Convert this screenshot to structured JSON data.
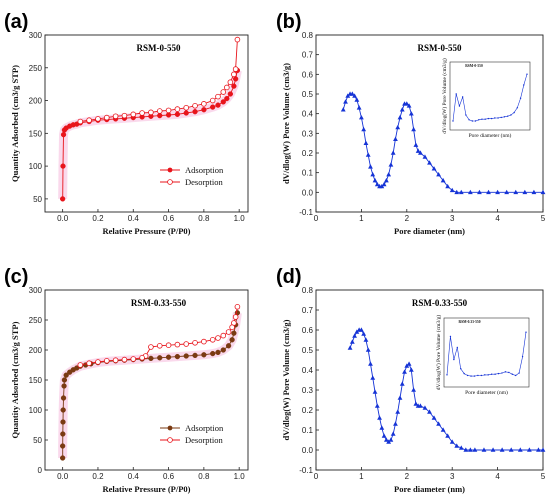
{
  "chart_data": [
    {
      "panel": "(a)",
      "type": "line",
      "title": "RSM-0-550",
      "xlabel": "Relative Pressure (P/P0)",
      "ylabel": "Quantity Adsorbed (cm3/g STP)",
      "xlim": [
        -0.1,
        1.05
      ],
      "ylim": [
        30,
        300
      ],
      "xticks": [
        "0.0",
        "0.2",
        "0.4",
        "0.6",
        "0.8",
        "1.0"
      ],
      "yticks": [
        "50",
        "100",
        "150",
        "200",
        "250",
        "300"
      ],
      "legend_position": "bottom-right",
      "series": [
        {
          "name": "Adsorption",
          "color": "#e8141b",
          "marker": "filled-circle",
          "x": [
            0.0,
            0.002,
            0.005,
            0.01,
            0.02,
            0.04,
            0.06,
            0.08,
            0.1,
            0.15,
            0.2,
            0.25,
            0.3,
            0.35,
            0.4,
            0.45,
            0.5,
            0.55,
            0.6,
            0.65,
            0.7,
            0.75,
            0.8,
            0.85,
            0.88,
            0.91,
            0.93,
            0.95,
            0.97,
            0.98,
            0.99
          ],
          "y": [
            50,
            100,
            148,
            155,
            158,
            161,
            163,
            164,
            166,
            168,
            170,
            171,
            172,
            173,
            174,
            175,
            176,
            177,
            178,
            179,
            181,
            183,
            186,
            190,
            193,
            198,
            203,
            210,
            222,
            233,
            246
          ]
        },
        {
          "name": "Desorption",
          "color": "#e8141b",
          "marker": "open-circle",
          "x": [
            0.99,
            0.98,
            0.97,
            0.95,
            0.93,
            0.91,
            0.88,
            0.85,
            0.8,
            0.75,
            0.7,
            0.65,
            0.6,
            0.55,
            0.5,
            0.45,
            0.4,
            0.35,
            0.3,
            0.25,
            0.2,
            0.15,
            0.1
          ],
          "y": [
            293,
            248,
            240,
            228,
            220,
            213,
            206,
            200,
            195,
            192,
            189,
            187,
            185,
            184,
            182,
            181,
            179,
            177,
            176,
            174,
            172,
            170,
            168
          ]
        }
      ]
    },
    {
      "panel": "(b)",
      "type": "line",
      "title": "RSM-0-550",
      "xlabel": "Pore diameter (nm)",
      "ylabel": "dV/dlog(W) Pore Volume (cm3/g)",
      "xlim": [
        0,
        5
      ],
      "ylim": [
        -0.1,
        0.8
      ],
      "xticks": [
        "0",
        "1",
        "2",
        "3",
        "4",
        "5"
      ],
      "yticks": [
        "-0.1",
        "0.0",
        "0.1",
        "0.2",
        "0.3",
        "0.4",
        "0.5",
        "0.6",
        "0.7",
        "0.8"
      ],
      "series": [
        {
          "name": "",
          "color": "#1533d6",
          "marker": "filled-triangle",
          "x": [
            0.6,
            0.65,
            0.7,
            0.75,
            0.8,
            0.85,
            0.9,
            0.95,
            1.0,
            1.05,
            1.1,
            1.15,
            1.2,
            1.25,
            1.3,
            1.35,
            1.4,
            1.45,
            1.5,
            1.55,
            1.6,
            1.65,
            1.7,
            1.75,
            1.8,
            1.85,
            1.9,
            1.95,
            2.0,
            2.05,
            2.1,
            2.15,
            2.2,
            2.25,
            2.3,
            2.4,
            2.5,
            2.6,
            2.7,
            2.8,
            2.9,
            3.0,
            3.1,
            3.2,
            3.4,
            3.6,
            3.8,
            4.0,
            4.2,
            4.4,
            4.6,
            4.8,
            5.0
          ],
          "y": [
            0.42,
            0.46,
            0.49,
            0.5,
            0.5,
            0.49,
            0.47,
            0.43,
            0.38,
            0.32,
            0.25,
            0.19,
            0.13,
            0.09,
            0.06,
            0.04,
            0.03,
            0.03,
            0.04,
            0.06,
            0.09,
            0.14,
            0.2,
            0.27,
            0.33,
            0.38,
            0.42,
            0.45,
            0.45,
            0.44,
            0.4,
            0.32,
            0.24,
            0.21,
            0.2,
            0.18,
            0.15,
            0.12,
            0.09,
            0.06,
            0.03,
            0.01,
            0.0,
            0.0,
            0.0,
            0.0,
            0.0,
            0.0,
            0.0,
            0.0,
            0.0,
            0.0,
            0.0
          ]
        }
      ],
      "inset": {
        "title": "RSM-0-550",
        "xlabel": "Pore diameter (nm)",
        "ylabel": "dV/dlog(W) Pore Volume (cm3/g)",
        "series_y": [
          0.1,
          0.55,
          0.35,
          0.5,
          0.2,
          0.12,
          0.1,
          0.1,
          0.12,
          0.13,
          0.13,
          0.14,
          0.14,
          0.15,
          0.15,
          0.16,
          0.17,
          0.18,
          0.2,
          0.24,
          0.32,
          0.48,
          0.7,
          0.88
        ]
      }
    },
    {
      "panel": "(c)",
      "type": "line",
      "title": "RSM-0.33-550",
      "xlabel": "Relative Pressure (P/P0)",
      "ylabel": "Quantity Adsorbed (cm3/g STP)",
      "xlim": [
        -0.1,
        1.05
      ],
      "ylim": [
        0,
        300
      ],
      "xticks": [
        "0.0",
        "0.2",
        "0.4",
        "0.6",
        "0.8",
        "1.0"
      ],
      "yticks": [
        "0",
        "50",
        "100",
        "150",
        "200",
        "250",
        "300"
      ],
      "legend_position": "bottom-right",
      "series": [
        {
          "name": "Adsorption",
          "color": "#7a3a12",
          "marker": "filled-circle",
          "x": [
            0.0,
            0.0,
            0.001,
            0.002,
            0.003,
            0.005,
            0.008,
            0.01,
            0.02,
            0.04,
            0.06,
            0.08,
            0.1,
            0.13,
            0.16,
            0.2,
            0.25,
            0.3,
            0.35,
            0.4,
            0.45,
            0.5,
            0.55,
            0.6,
            0.65,
            0.7,
            0.75,
            0.8,
            0.85,
            0.88,
            0.91,
            0.94,
            0.96,
            0.97,
            0.98,
            0.99
          ],
          "y": [
            20,
            40,
            60,
            80,
            100,
            120,
            140,
            150,
            158,
            163,
            167,
            170,
            173,
            175,
            177,
            179,
            181,
            182,
            183,
            184,
            185,
            186,
            187,
            188,
            189,
            190,
            191,
            192,
            194,
            196,
            200,
            207,
            217,
            228,
            242,
            262
          ]
        },
        {
          "name": "Desorption",
          "color": "#e8141b",
          "marker": "open-circle",
          "x": [
            0.99,
            0.98,
            0.97,
            0.96,
            0.94,
            0.91,
            0.88,
            0.85,
            0.8,
            0.75,
            0.7,
            0.65,
            0.6,
            0.55,
            0.5,
            0.47,
            0.45,
            0.4,
            0.35,
            0.3,
            0.25,
            0.2,
            0.15,
            0.1
          ],
          "y": [
            272,
            255,
            245,
            238,
            230,
            224,
            220,
            217,
            214,
            212,
            210,
            209,
            208,
            207,
            205,
            190,
            187,
            185,
            184,
            183,
            182,
            180,
            178,
            175
          ]
        }
      ]
    },
    {
      "panel": "(d)",
      "type": "line",
      "title": "RSM-0.33-550",
      "xlabel": "Pore diameter (nm)",
      "ylabel": "dV/dlog(W) Pore Volume (cm3/g)",
      "xlim": [
        0,
        5
      ],
      "ylim": [
        -0.1,
        0.8
      ],
      "xticks": [
        "0",
        "1",
        "2",
        "3",
        "4",
        "5"
      ],
      "yticks": [
        "-0.1",
        "0.0",
        "0.1",
        "0.2",
        "0.3",
        "0.4",
        "0.5",
        "0.6",
        "0.7",
        "0.8"
      ],
      "series": [
        {
          "name": "",
          "color": "#1533d6",
          "marker": "filled-triangle",
          "x": [
            0.75,
            0.8,
            0.85,
            0.9,
            0.95,
            1.0,
            1.05,
            1.1,
            1.15,
            1.2,
            1.25,
            1.3,
            1.35,
            1.4,
            1.45,
            1.5,
            1.55,
            1.6,
            1.65,
            1.7,
            1.75,
            1.8,
            1.85,
            1.9,
            1.95,
            2.0,
            2.05,
            2.1,
            2.15,
            2.2,
            2.25,
            2.3,
            2.4,
            2.5,
            2.6,
            2.7,
            2.8,
            2.9,
            3.0,
            3.1,
            3.2,
            3.3,
            3.4,
            3.5,
            3.7,
            3.9,
            4.1,
            4.3,
            4.5,
            4.7,
            4.9,
            5.0
          ],
          "y": [
            0.51,
            0.54,
            0.57,
            0.59,
            0.6,
            0.6,
            0.58,
            0.55,
            0.5,
            0.43,
            0.36,
            0.29,
            0.22,
            0.16,
            0.11,
            0.07,
            0.05,
            0.04,
            0.05,
            0.08,
            0.13,
            0.19,
            0.26,
            0.33,
            0.39,
            0.42,
            0.43,
            0.4,
            0.3,
            0.23,
            0.22,
            0.22,
            0.21,
            0.19,
            0.16,
            0.13,
            0.1,
            0.07,
            0.04,
            0.02,
            0.01,
            0.0,
            0.0,
            0.0,
            0.0,
            0.0,
            0.0,
            0.0,
            0.0,
            0.0,
            0.0,
            0.0
          ]
        }
      ],
      "inset": {
        "title": "RSM-0.33-550",
        "xlabel": "Pore diameter (nm)",
        "ylabel": "dV/dlog(W) Pore Volume (cm3/g)",
        "series_y": [
          0.15,
          0.78,
          0.4,
          0.6,
          0.25,
          0.17,
          0.14,
          0.13,
          0.13,
          0.14,
          0.14,
          0.15,
          0.15,
          0.16,
          0.16,
          0.17,
          0.18,
          0.2,
          0.19,
          0.16,
          0.14,
          0.18,
          0.45,
          0.85
        ]
      }
    }
  ]
}
